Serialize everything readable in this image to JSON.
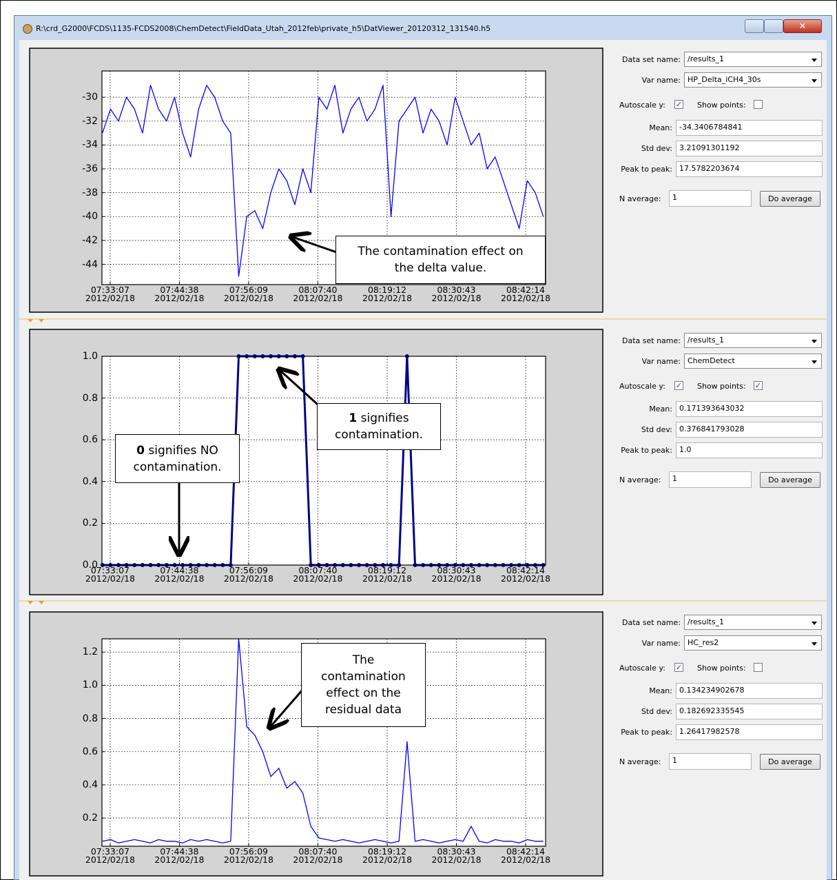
{
  "window_title": "R:\\crd_G2000\\FCDS\\1135-FCDS2008\\ChemDetect\\FieldData_Utah_2012feb\\private_h5\\DatViewer_20120312_131540.h5",
  "chart_data": [
    {
      "type": "line",
      "grid": true,
      "xlim": [
        27105,
        31533
      ],
      "ylim": [
        -45.7,
        -27.8
      ],
      "xticks": [
        {
          "value": 27187,
          "label": "07:33:07\n2012/02/18"
        },
        {
          "value": 27878,
          "label": "07:44:38\n2012/02/18"
        },
        {
          "value": 28569,
          "label": "07:56:09\n2012/02/18"
        },
        {
          "value": 29260,
          "label": "08:07:40\n2012/02/18"
        },
        {
          "value": 29952,
          "label": "08:19:12\n2012/02/18"
        },
        {
          "value": 30643,
          "label": "08:30:43\n2012/02/18"
        },
        {
          "value": 31334,
          "label": "08:42:14\n2012/02/18"
        }
      ],
      "yticks": [
        -30,
        -32,
        -34,
        -36,
        -38,
        -40,
        -42,
        -44
      ],
      "series": [
        {
          "color": "#0000ff",
          "x": [
            27110,
            27190,
            27270,
            27350,
            27430,
            27510,
            27590,
            27670,
            27750,
            27830,
            27910,
            27990,
            28070,
            28150,
            28230,
            28310,
            28390,
            28470,
            28550,
            28630,
            28710,
            28790,
            28870,
            28950,
            29030,
            29110,
            29190,
            29270,
            29350,
            29430,
            29510,
            29590,
            29670,
            29750,
            29830,
            29910,
            29990,
            30070,
            30150,
            30230,
            30310,
            30390,
            30470,
            30550,
            30630,
            30710,
            30790,
            30870,
            30950,
            31030,
            31110,
            31190,
            31270,
            31350,
            31430,
            31510
          ],
          "values": [
            -33,
            -31,
            -32,
            -30,
            -31,
            -33,
            -29,
            -31,
            -32,
            -30,
            -33,
            -35,
            -31,
            -29,
            -30,
            -32,
            -33,
            -45,
            -40,
            -39.5,
            -41,
            -38,
            -36,
            -37,
            -39,
            -36,
            -38,
            -30,
            -31,
            -29,
            -33,
            -31,
            -30,
            -32,
            -31,
            -29,
            -40,
            -32,
            -31,
            -30,
            -33,
            -31,
            -32,
            -34,
            -30,
            -32,
            -34,
            -33,
            -36,
            -35,
            -37,
            -39,
            -41,
            -37,
            -38,
            -40
          ]
        }
      ],
      "annotations": [
        {
          "text": "The contamination effect on\nthe delta value."
        }
      ]
    },
    {
      "type": "line",
      "grid": true,
      "xlim": [
        27105,
        31533
      ],
      "ylim": [
        0,
        1
      ],
      "xticks": [
        {
          "value": 27187,
          "label": "07:33:07\n2012/02/18"
        },
        {
          "value": 27878,
          "label": "07:44:38\n2012/02/18"
        },
        {
          "value": 28569,
          "label": "07:56:09\n2012/02/18"
        },
        {
          "value": 29260,
          "label": "08:07:40\n2012/02/18"
        },
        {
          "value": 29952,
          "label": "08:19:12\n2012/02/18"
        },
        {
          "value": 30643,
          "label": "08:30:43\n2012/02/18"
        },
        {
          "value": 31334,
          "label": "08:42:14\n2012/02/18"
        }
      ],
      "yticks": [
        {
          "value": 0,
          "label": "0.0"
        },
        0.2,
        0.4,
        0.6,
        0.8,
        {
          "value": 1,
          "label": "1.0"
        }
      ],
      "series": [
        {
          "color": "#00008b",
          "x": [
            27110,
            27190,
            27270,
            27350,
            27430,
            27510,
            27590,
            27670,
            27750,
            27830,
            27910,
            27990,
            28070,
            28150,
            28230,
            28310,
            28390,
            28470,
            28550,
            28630,
            28710,
            28790,
            28870,
            28950,
            29030,
            29110,
            29190,
            29270,
            29350,
            29430,
            29510,
            29590,
            29670,
            29750,
            29830,
            29910,
            29990,
            30070,
            30150,
            30230,
            30310,
            30390,
            30470,
            30550,
            30630,
            30710,
            30790,
            30870,
            30950,
            31030,
            31110,
            31190,
            31270,
            31350,
            31430,
            31510
          ],
          "values": [
            0,
            0,
            0,
            0,
            0,
            0,
            0,
            0,
            0,
            0,
            0,
            0,
            0,
            0,
            0,
            0,
            0,
            1,
            1,
            1,
            1,
            1,
            1,
            1,
            1,
            1,
            0,
            0,
            0,
            0,
            0,
            0,
            0,
            0,
            0,
            0,
            0,
            0,
            1,
            0,
            0,
            0,
            0,
            0,
            0,
            0,
            0,
            0,
            0,
            0,
            0,
            0,
            0,
            0,
            0,
            0
          ]
        }
      ],
      "annotations": [
        {
          "bold": "1",
          "text": " signifies\ncontamination."
        },
        {
          "bold": "0",
          "text": " signifies NO\ncontamination."
        }
      ]
    },
    {
      "type": "line",
      "grid": true,
      "xlim": [
        27105,
        31533
      ],
      "ylim": [
        0.03,
        1.28
      ],
      "xticks": [
        {
          "value": 27187,
          "label": "07:33:07\n2012/02/18"
        },
        {
          "value": 27878,
          "label": "07:44:38\n2012/02/18"
        },
        {
          "value": 28569,
          "label": "07:56:09\n2012/02/18"
        },
        {
          "value": 29260,
          "label": "08:07:40\n2012/02/18"
        },
        {
          "value": 29952,
          "label": "08:19:12\n2012/02/18"
        },
        {
          "value": 30643,
          "label": "08:30:43\n2012/02/18"
        },
        {
          "value": 31334,
          "label": "08:42:14\n2012/02/18"
        }
      ],
      "yticks": [
        0.2,
        0.4,
        0.6,
        0.8,
        {
          "value": 1,
          "label": "1.0"
        },
        1.2
      ],
      "series": [
        {
          "color": "#0000ff",
          "x": [
            27110,
            27190,
            27270,
            27350,
            27430,
            27510,
            27590,
            27670,
            27750,
            27830,
            27910,
            27990,
            28070,
            28150,
            28230,
            28310,
            28390,
            28470,
            28550,
            28630,
            28710,
            28790,
            28870,
            28950,
            29030,
            29110,
            29190,
            29270,
            29350,
            29430,
            29510,
            29590,
            29670,
            29750,
            29830,
            29910,
            29990,
            30070,
            30150,
            30230,
            30310,
            30390,
            30470,
            30550,
            30630,
            30710,
            30790,
            30870,
            30950,
            31030,
            31110,
            31190,
            31270,
            31350,
            31430,
            31510
          ],
          "values": [
            0.06,
            0.07,
            0.05,
            0.06,
            0.07,
            0.06,
            0.05,
            0.07,
            0.06,
            0.06,
            0.05,
            0.07,
            0.06,
            0.07,
            0.06,
            0.05,
            0.06,
            1.28,
            0.75,
            0.7,
            0.6,
            0.45,
            0.5,
            0.38,
            0.42,
            0.35,
            0.15,
            0.08,
            0.07,
            0.06,
            0.07,
            0.06,
            0.05,
            0.06,
            0.07,
            0.06,
            0.05,
            0.06,
            0.66,
            0.06,
            0.07,
            0.06,
            0.05,
            0.06,
            0.07,
            0.06,
            0.15,
            0.06,
            0.05,
            0.07,
            0.06,
            0.06,
            0.05,
            0.07,
            0.06,
            0.06
          ]
        }
      ],
      "annotations": [
        {
          "text": "The\ncontamination\neffect on the\nresidual data"
        }
      ]
    }
  ],
  "controls": [
    {
      "dataset_label": "Data set name:",
      "dataset": "/results_1",
      "var_label": "Var name:",
      "var": "HP_Delta_iCH4_30s",
      "autoscale_label": "Autoscale y:",
      "autoscale": true,
      "show_points_label": "Show points:",
      "show_points": false,
      "mean_label": "Mean:",
      "mean": "-34.3406784841",
      "std_label": "Std dev:",
      "std": "3.21091301192",
      "p2p_label": "Peak to peak:",
      "p2p": "17.5782203674",
      "navg_label": "N average:",
      "navg": "1",
      "button": "Do average"
    },
    {
      "dataset_label": "Data set name:",
      "dataset": "/results_1",
      "var_label": "Var name:",
      "var": "ChemDetect",
      "autoscale_label": "Autoscale y:",
      "autoscale": true,
      "show_points_label": "Show points:",
      "show_points": true,
      "mean_label": "Mean:",
      "mean": "0.171393643032",
      "std_label": "Std dev:",
      "std": "0.376841793028",
      "p2p_label": "Peak to peak:",
      "p2p": "1.0",
      "navg_label": "N average:",
      "navg": "1",
      "button": "Do average"
    },
    {
      "dataset_label": "Data set name:",
      "dataset": "/results_1",
      "var_label": "Var name:",
      "var": "HC_res2",
      "autoscale_label": "Autoscale y:",
      "autoscale": true,
      "show_points_label": "Show points:",
      "show_points": false,
      "mean_label": "Mean:",
      "mean": "0.134234902678",
      "std_label": "Std dev:",
      "std": "0.182692335545",
      "p2p_label": "Peak to peak:",
      "p2p": "1.26417982578",
      "navg_label": "N average:",
      "navg": "1",
      "button": "Do average"
    }
  ]
}
